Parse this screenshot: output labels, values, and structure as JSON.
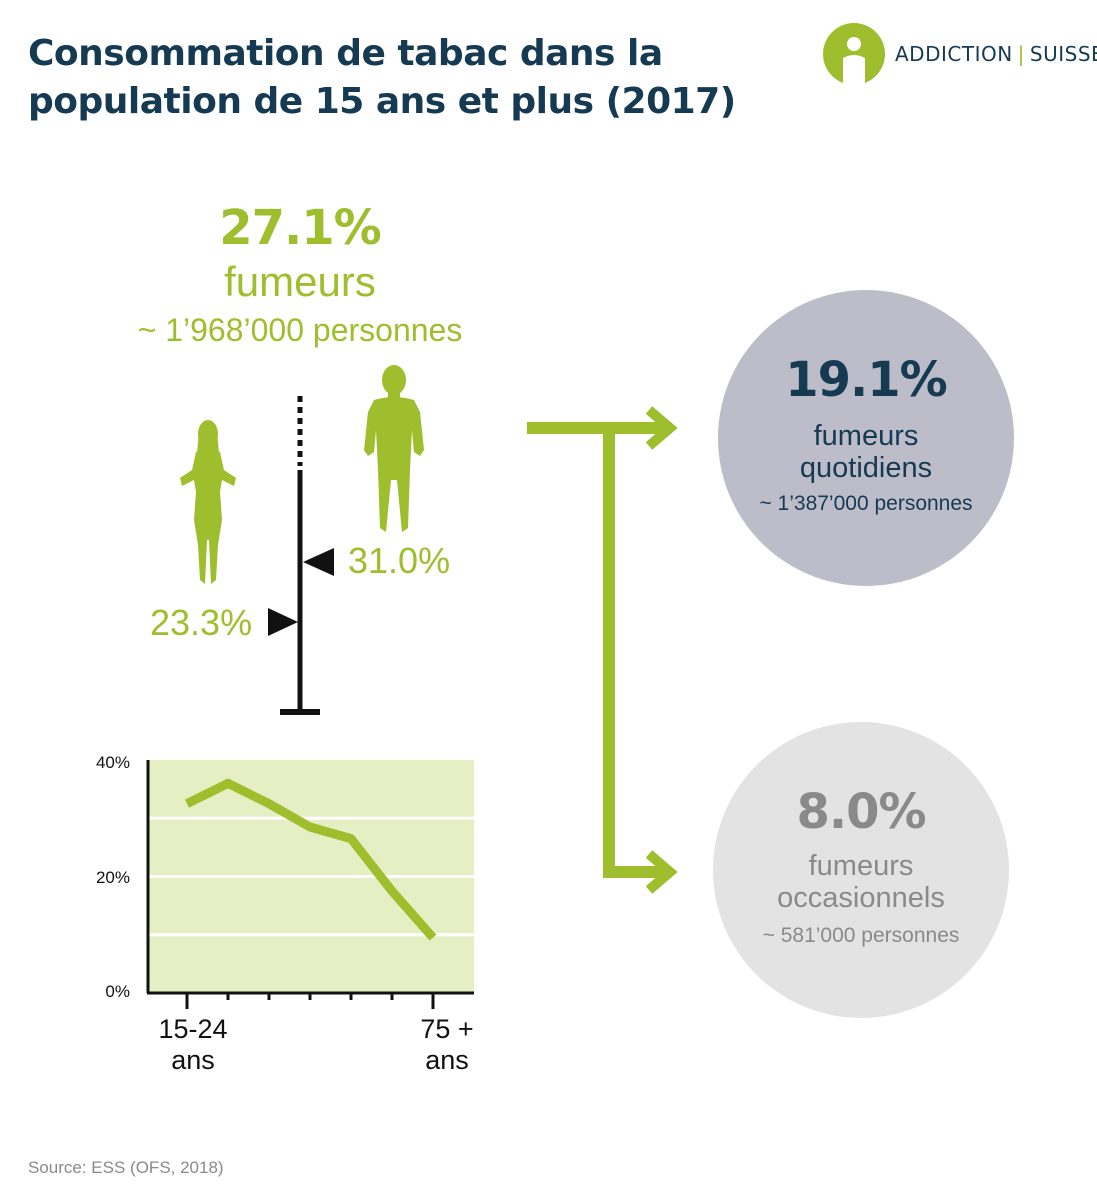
{
  "title": {
    "line1": "Consommation de tabac dans la",
    "line2": "population de 15 ans et plus (2017)"
  },
  "logo": {
    "name_left": "ADDICTION",
    "separator": "|",
    "name_right": "SUISSE",
    "icon": "person-in-circle-icon",
    "color": "#9ebe2d"
  },
  "smokers": {
    "percent": "27.1%",
    "label": "fumeurs",
    "count": "~ 1’968’000 personnes"
  },
  "gender": {
    "men_percent": "31.0%",
    "women_percent": "23.3%",
    "men_value": 31.0,
    "women_value": 23.3,
    "men_icon": "man-silhouette-icon",
    "women_icon": "woman-silhouette-icon"
  },
  "daily": {
    "percent": "19.1%",
    "label_line1": "fumeurs",
    "label_line2": "quotidiens",
    "count": "~ 1’387’000 personnes",
    "circle_color": "#bcbdc8",
    "text_color": "#163a52"
  },
  "occasional": {
    "percent": "8.0%",
    "label_line1": "fumeurs",
    "label_line2": "occasionnels",
    "count": "~ 581’000 personnes",
    "circle_color": "#e3e3e3",
    "text_color": "#8a8a8a"
  },
  "chart_data": {
    "type": "line",
    "x": [
      1,
      2,
      3,
      4,
      5,
      6,
      7
    ],
    "x_tick_labels": [
      {
        "line1": "15-24",
        "line2": "ans"
      },
      {
        "line1": "75 +",
        "line2": "ans"
      }
    ],
    "series": [
      {
        "values": [
          32.5,
          36,
          32.5,
          28.5,
          26.5,
          17.5,
          9.5
        ],
        "color": "#9ebe2d"
      }
    ],
    "ylim": [
      0,
      40
    ],
    "y_ticks": [
      "0%",
      "20%",
      "40%"
    ],
    "grid": true,
    "background": "#e6efc3"
  },
  "colors": {
    "green": "#9ebe2d",
    "navy": "#163a52",
    "black": "#111111"
  },
  "source": "Source: ESS (OFS, 2018)"
}
